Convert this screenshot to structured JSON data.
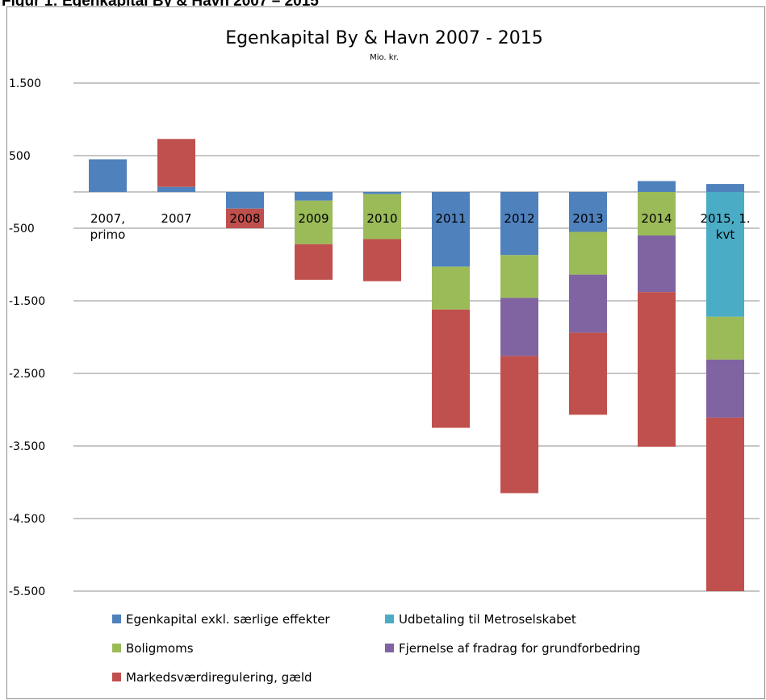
{
  "figure_caption": "Figur 1: Egenkapital By & Havn 2007 – 2015",
  "chart_data": {
    "type": "bar",
    "stacked": true,
    "title": "Egenkapital By & Havn 2007 - 2015",
    "subtitle": "Mio. kr.",
    "xlabel": "",
    "ylabel": "",
    "ylim": [
      -5500,
      1500
    ],
    "yticks": [
      1500,
      500,
      -500,
      -1500,
      -2500,
      -3500,
      -4500,
      -5500
    ],
    "ytick_labels": [
      "1.500",
      "500",
      "-500",
      "-1.500",
      "-2.500",
      "-3.500",
      "-4.500",
      "-5.500"
    ],
    "grid": true,
    "legend_position": "bottom",
    "categories": [
      [
        "2007,",
        "primo"
      ],
      [
        "2007"
      ],
      [
        "2008"
      ],
      [
        "2009"
      ],
      [
        "2010"
      ],
      [
        "2011"
      ],
      [
        "2012"
      ],
      [
        "2013"
      ],
      [
        "2014"
      ],
      [
        "2015, 1.",
        "kvt"
      ]
    ],
    "series": [
      {
        "name": "Egenkapital exkl. særlige effekter",
        "color": "#4f81bd",
        "values": [
          450,
          70,
          -230,
          -120,
          -30,
          -1030,
          -870,
          -550,
          150,
          110
        ]
      },
      {
        "name": "Udbetaling til Metroselskabet",
        "color": "#4bacc6",
        "values": [
          0,
          0,
          0,
          0,
          0,
          0,
          0,
          0,
          0,
          -1720
        ]
      },
      {
        "name": "Boligmoms",
        "color": "#9bbb59",
        "values": [
          0,
          0,
          0,
          -600,
          -620,
          -590,
          -590,
          -590,
          -600,
          -590
        ]
      },
      {
        "name": "Fjernelse af fradrag for grundforbedring",
        "color": "#8064a2",
        "values": [
          0,
          0,
          0,
          0,
          0,
          0,
          -800,
          -800,
          -780,
          -800
        ]
      },
      {
        "name": "Markedsværdiregulering, gæld",
        "color": "#c0504d",
        "values": [
          0,
          660,
          -270,
          -490,
          -580,
          -1630,
          -1890,
          -1130,
          -2130,
          -2390
        ]
      }
    ],
    "legend_order": [
      0,
      1,
      2,
      3,
      4
    ]
  }
}
